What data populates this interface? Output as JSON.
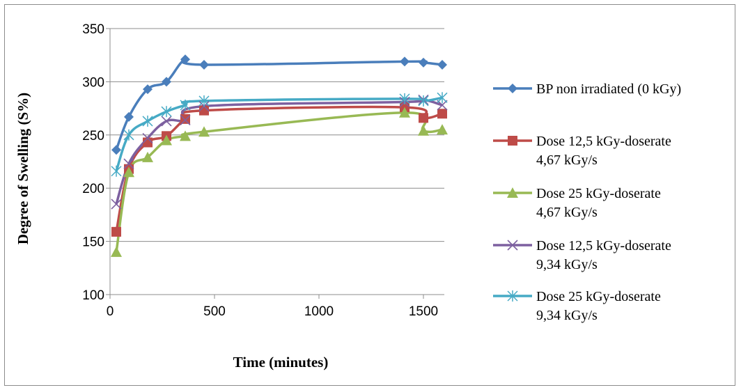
{
  "chart_data": {
    "type": "line",
    "title": "",
    "xlabel": "Time (minutes)",
    "ylabel": "Degree of Swelling (S%)",
    "xlim": [
      0,
      1600
    ],
    "ylim": [
      100,
      350
    ],
    "x_ticks": [
      "0",
      "500",
      "1000",
      "1500"
    ],
    "y_ticks": [
      "100",
      "150",
      "200",
      "250",
      "300",
      "350"
    ],
    "grid": "horizontal",
    "legend_position": "right",
    "series": [
      {
        "name": "BP non irradiated (0 kGy)",
        "label_lines": [
          "BP non irradiated (0 kGy)"
        ],
        "color": "#4a7ebb",
        "marker": "diamond",
        "points": [
          [
            30,
            236
          ],
          [
            90,
            267
          ],
          [
            180,
            293
          ],
          [
            270,
            300
          ],
          [
            360,
            321
          ],
          [
            450,
            316
          ],
          [
            1410,
            319
          ],
          [
            1500,
            318
          ],
          [
            1590,
            316
          ]
        ]
      },
      {
        "name": "Dose 12,5 kGy-doserate 4,67 kGy/s",
        "label_lines": [
          "Dose 12,5 kGy-doserate",
          "4,67 kGy/s"
        ],
        "color": "#be4b48",
        "marker": "square",
        "points": [
          [
            30,
            159
          ],
          [
            90,
            218
          ],
          [
            180,
            243
          ],
          [
            270,
            249
          ],
          [
            360,
            265
          ],
          [
            450,
            273
          ],
          [
            1410,
            276
          ],
          [
            1500,
            266
          ],
          [
            1590,
            270
          ]
        ]
      },
      {
        "name": "Dose 25 kGy-doserate 4,67 kGy/s",
        "label_lines": [
          "Dose 25 kGy-doserate",
          "4,67 kGy/s"
        ],
        "color": "#98b954",
        "marker": "triangle",
        "points": [
          [
            30,
            140
          ],
          [
            90,
            215
          ],
          [
            180,
            229
          ],
          [
            270,
            245
          ],
          [
            360,
            249
          ],
          [
            450,
            253
          ],
          [
            1410,
            271
          ],
          [
            1500,
            254
          ],
          [
            1590,
            255
          ]
        ]
      },
      {
        "name": "Dose 12,5 kGy-doserate 9,34 kGy/s",
        "label_lines": [
          "Dose 12,5 kGy-doserate",
          "9,34 kGy/s"
        ],
        "color": "#7d60a0",
        "marker": "x",
        "points": [
          [
            30,
            185
          ],
          [
            90,
            223
          ],
          [
            180,
            247
          ],
          [
            270,
            263
          ],
          [
            360,
            264
          ],
          [
            450,
            277
          ],
          [
            1410,
            281
          ],
          [
            1500,
            283
          ],
          [
            1590,
            278
          ]
        ]
      },
      {
        "name": "Dose 25 kGy-doserate 9,34 kGy/s",
        "label_lines": [
          "Dose 25 kGy-doserate",
          "9,34 kGy/s"
        ],
        "color": "#46aac5",
        "marker": "star",
        "points": [
          [
            30,
            216
          ],
          [
            90,
            250
          ],
          [
            180,
            263
          ],
          [
            270,
            272
          ],
          [
            360,
            278
          ],
          [
            450,
            282
          ],
          [
            1410,
            284
          ],
          [
            1500,
            282
          ],
          [
            1590,
            285
          ]
        ]
      }
    ]
  }
}
